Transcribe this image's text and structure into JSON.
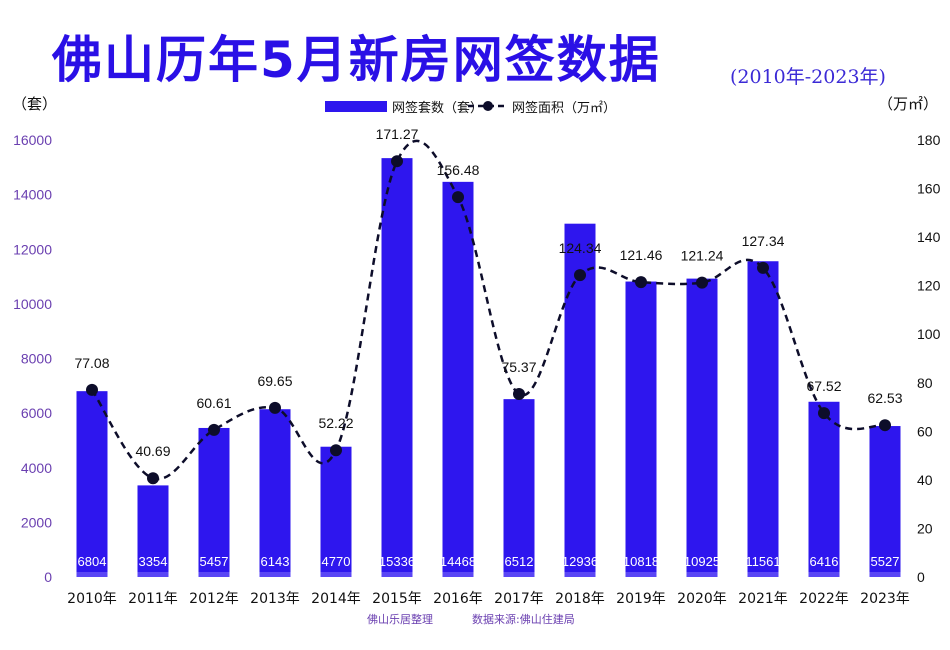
{
  "title": "佛山历年5月新房网签数据",
  "subtitle": "(2010年-2023年)",
  "footer": {
    "left": "佛山乐居整理",
    "right": "数据来源:佛山住建局"
  },
  "colors": {
    "bar": "#2e16ee",
    "bar_light": "#5a46f5",
    "line": "#0d0d2a",
    "title": "#2a10e6"
  },
  "chart_data": {
    "type": "bar",
    "categories": [
      "2010年",
      "2011年",
      "2012年",
      "2013年",
      "2014年",
      "2015年",
      "2016年",
      "2017年",
      "2018年",
      "2019年",
      "2020年",
      "2021年",
      "2022年",
      "2023年"
    ],
    "series": [
      {
        "name": "网签套数（套）",
        "type": "bar",
        "axis": "left",
        "values": [
          6804,
          3354,
          5457,
          6143,
          4770,
          15336,
          14468,
          6512,
          12936,
          10818,
          10925,
          11561,
          6416,
          5527
        ],
        "labels": [
          "6804",
          "3354",
          "5457",
          "6143",
          "4770",
          "15336",
          "14468",
          "6512",
          "12936",
          "10818",
          "10925",
          "11561",
          "6416",
          "5527"
        ]
      },
      {
        "name": "网签面积（万㎡）",
        "type": "line",
        "axis": "right",
        "style": "dashed-smooth",
        "values": [
          77.08,
          40.69,
          60.61,
          69.65,
          52.22,
          171.27,
          156.48,
          75.37,
          124.34,
          121.46,
          121.24,
          127.34,
          67.52,
          62.53
        ],
        "labels": [
          "77.08",
          "40.69",
          "60.61",
          "69.65",
          "52.22",
          "171.27",
          "156.48",
          "75.37",
          "124.34",
          "121.46",
          "121.24",
          "127.34",
          "67.52",
          "62.53"
        ]
      }
    ],
    "y_left": {
      "unit": "（套）",
      "range": [
        0,
        16000
      ],
      "ticks": [
        "0",
        "2000",
        "4000",
        "6000",
        "8000",
        "10000",
        "12000",
        "14000",
        "16000"
      ]
    },
    "y_right": {
      "unit": "（万㎡）",
      "range": [
        0,
        180
      ],
      "ticks": [
        "0",
        "20",
        "40",
        "60",
        "80",
        "100",
        "120",
        "140",
        "160",
        "180"
      ]
    },
    "legend_position": "top-center",
    "grid": false
  }
}
